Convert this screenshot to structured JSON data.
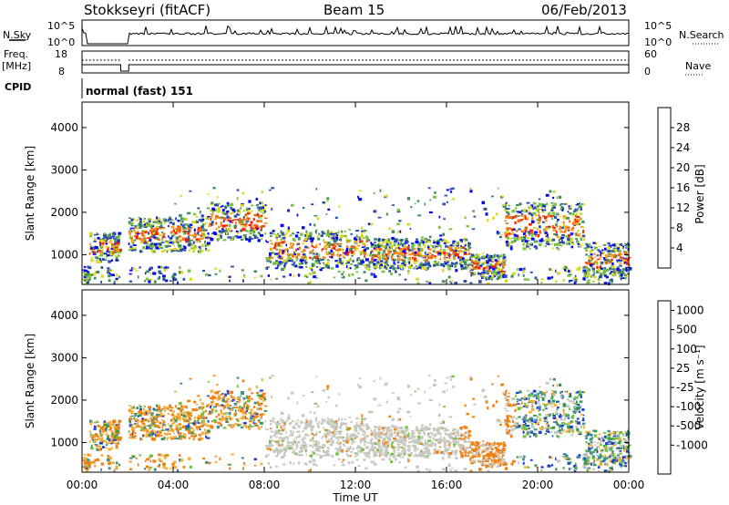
{
  "header": {
    "station": "Stokkseyri (fitACF)",
    "beam": "Beam 15",
    "date": "06/Feb/2013"
  },
  "side_labels": {
    "nsky": "N.Sky",
    "nsky_high": "10^5",
    "nsky_low": "10^0",
    "freq_line1": "Freq.",
    "freq_line2": "[MHz]",
    "freq_high": "18",
    "freq_low": "8",
    "cpid": "CPID",
    "nsearch": "N.Search",
    "nsearch_high": "10^5",
    "nsearch_low": "10^0",
    "nave": "Nave",
    "nave_high": "60",
    "nave_low": "0",
    "mode": "normal (fast) 151"
  },
  "chart_data": [
    {
      "type": "heatmap",
      "name": "power",
      "ylabel": "Slant Range [km]",
      "ylim": [
        300,
        4600
      ],
      "yticks": [
        "1000",
        "2000",
        "3000",
        "4000"
      ],
      "xlim": [
        0,
        24
      ],
      "colorbar_label": "Power [dB]",
      "colorbar_ticks": [
        "4",
        "8",
        "12",
        "16",
        "20",
        "24",
        "28"
      ],
      "colors": [
        "#0000ff",
        "#2a4fa8",
        "#3f8f5a",
        "#7ac142",
        "#d8d820",
        "#f59a20",
        "#f06a10",
        "#ff2000"
      ],
      "bands": [
        {
          "x": [
            0.3,
            1.6
          ],
          "center": 1200,
          "width": 350
        },
        {
          "x": [
            2.0,
            5.5
          ],
          "center": 1500,
          "width": 400
        },
        {
          "x": [
            5.5,
            8.0
          ],
          "center": 1800,
          "width": 450
        },
        {
          "x": [
            8.0,
            12.5
          ],
          "center": 1150,
          "width": 450
        },
        {
          "x": [
            12.5,
            17.0
          ],
          "center": 1050,
          "width": 350
        },
        {
          "x": [
            17.0,
            18.5
          ],
          "center": 750,
          "width": 300
        },
        {
          "x": [
            18.5,
            22.0
          ],
          "center": 1700,
          "width": 550
        },
        {
          "x": [
            22.0,
            24.0
          ],
          "center": 900,
          "width": 400
        }
      ]
    },
    {
      "type": "heatmap",
      "name": "velocity",
      "ylabel": "Slant Range [km]",
      "xlabel": "Time UT",
      "ylim": [
        300,
        4600
      ],
      "yticks": [
        "1000",
        "2000",
        "3000",
        "4000"
      ],
      "xlim": [
        0,
        24
      ],
      "xticks": [
        "00:00",
        "04:00",
        "08:00",
        "12:00",
        "16:00",
        "20:00",
        "00:00"
      ],
      "colorbar_label": "Velocity [m s⁻¹]",
      "colorbar_ticks": [
        "1000",
        "500",
        "100",
        "25",
        "-25",
        "-100",
        "-500",
        "-1000"
      ],
      "colors": [
        "#2040d0",
        "#3f8f9a",
        "#2f9a4a",
        "#70c040",
        "#c8c8c0",
        "#f5b040",
        "#f08010",
        "#ff4000",
        "#ff1010"
      ]
    }
  ]
}
